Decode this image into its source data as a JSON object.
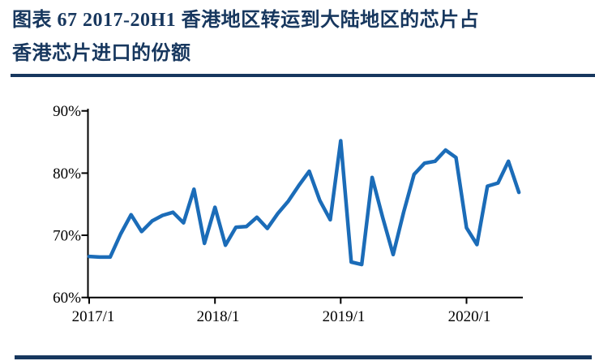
{
  "figure": {
    "title_line1": "图表 67  2017-20H1 香港地区转运到大陆地区的芯片占",
    "title_line2": "香港芯片进口的份额"
  },
  "colors": {
    "accent_navy": "#17375E",
    "line_blue": "#1B6CB8",
    "axis_black": "#000000"
  },
  "chart_data": {
    "type": "line",
    "title": "图表 67 2017-20H1 香港地区转运到大陆地区的芯片占香港芯片进口的份额",
    "x": [
      "2017/1",
      "2017/2",
      "2017/3",
      "2017/4",
      "2017/5",
      "2017/6",
      "2017/7",
      "2017/8",
      "2017/9",
      "2017/10",
      "2017/11",
      "2017/12",
      "2018/1",
      "2018/2",
      "2018/3",
      "2018/4",
      "2018/5",
      "2018/6",
      "2018/7",
      "2018/8",
      "2018/9",
      "2018/10",
      "2018/11",
      "2018/12",
      "2019/1",
      "2019/2",
      "2019/3",
      "2019/4",
      "2019/5",
      "2019/6",
      "2019/7",
      "2019/8",
      "2019/9",
      "2019/10",
      "2019/11",
      "2019/12",
      "2020/1",
      "2020/2",
      "2020/3",
      "2020/4",
      "2020/5",
      "2020/6"
    ],
    "values": [
      66.6,
      66.5,
      66.5,
      70.2,
      73.3,
      70.6,
      72.3,
      73.2,
      73.7,
      72.0,
      77.4,
      68.7,
      74.5,
      68.4,
      71.3,
      71.4,
      72.9,
      71.1,
      73.5,
      75.5,
      78.0,
      80.3,
      75.6,
      72.5,
      85.2,
      65.7,
      65.3,
      79.3,
      72.9,
      66.9,
      73.7,
      79.8,
      81.6,
      81.9,
      83.7,
      82.5,
      71.2,
      68.5,
      77.9,
      78.4,
      81.9,
      76.9
    ],
    "unit": "%",
    "xlabel": "",
    "ylabel": "",
    "ylim": [
      60,
      90
    ],
    "ytick_values": [
      90,
      80,
      70,
      60
    ],
    "ytick_labels": [
      "90%",
      "80%",
      "70%",
      "60%"
    ],
    "xtick_labels": [
      "2017/1",
      "2018/1",
      "2019/1",
      "2020/1"
    ],
    "grid": false,
    "legend": "none",
    "line_color": "#1B6CB8"
  }
}
